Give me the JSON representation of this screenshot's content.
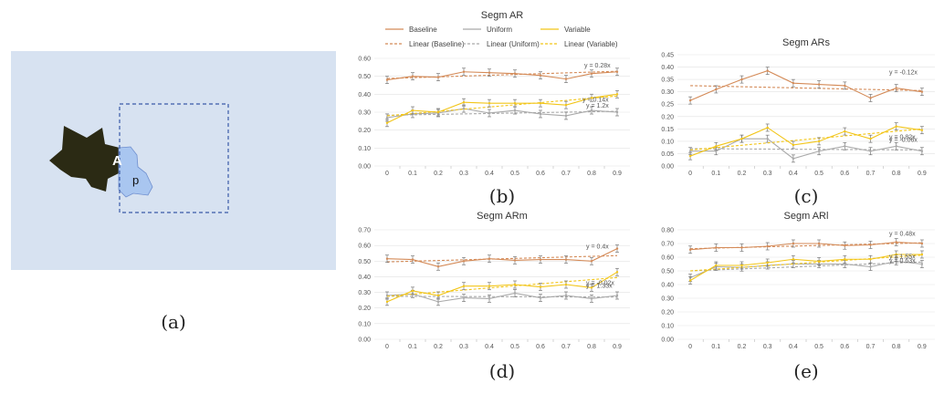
{
  "figure_a": {
    "label_a": "A",
    "label_p": "p",
    "caption": "(a)",
    "colors": {
      "background": "#d7e2f1",
      "shape": "#2b2a14",
      "p_shape": "#a9c6f0",
      "dashed_box": "#3a5aa8"
    }
  },
  "legend": {
    "baseline": "Baseline",
    "uniform": "Uniform",
    "variable": "Variable",
    "linear_baseline": "Linear (Baseline)",
    "linear_uniform": "Linear (Uniform)",
    "linear_variable": "Linear (Variable)"
  },
  "colors": {
    "baseline": "#d48a57",
    "uniform": "#a9a9a9",
    "variable": "#f2c518",
    "grid": "#e2e2e2"
  },
  "chart_data": [
    {
      "panel": "b",
      "caption": "(b)",
      "type": "line",
      "title": "Segm AR",
      "x": [
        0,
        0.1,
        0.2,
        0.3,
        0.4,
        0.5,
        0.6,
        0.7,
        0.8,
        0.9
      ],
      "x_tick_labels": [
        "0",
        "0.1",
        "0.2",
        "0.3",
        "0.4",
        "0.5",
        "0.6",
        "0.7",
        "0.8",
        "0.9"
      ],
      "ylim": [
        0,
        0.6
      ],
      "y_ticks": [
        "0.00",
        "0.10",
        "0.20",
        "0.30",
        "0.40",
        "0.50",
        "0.60"
      ],
      "series": [
        {
          "key": "baseline",
          "values": [
            0.48,
            0.5,
            0.495,
            0.525,
            0.52,
            0.515,
            0.505,
            0.485,
            0.515,
            0.525
          ],
          "trend": [
            0.488,
            0.528
          ]
        },
        {
          "key": "uniform",
          "values": [
            0.27,
            0.29,
            0.295,
            0.32,
            0.295,
            0.31,
            0.29,
            0.28,
            0.31,
            0.3
          ],
          "trend": [
            0.283,
            0.305
          ]
        },
        {
          "key": "variable",
          "values": [
            0.24,
            0.31,
            0.3,
            0.355,
            0.35,
            0.35,
            0.35,
            0.34,
            0.38,
            0.4
          ],
          "trend": [
            0.28,
            0.39
          ]
        }
      ],
      "annotations": [
        "y = 0.28x",
        "y = 1.2x",
        "y = 0.14x"
      ]
    },
    {
      "panel": "c",
      "caption": "(c)",
      "type": "line",
      "title": "Segm ARs",
      "x": [
        0,
        0.1,
        0.2,
        0.3,
        0.4,
        0.5,
        0.6,
        0.7,
        0.8,
        0.9
      ],
      "x_tick_labels": [
        "0",
        "0.1",
        "0.2",
        "0.3",
        "0.4",
        "0.5",
        "0.6",
        "0.7",
        "0.8",
        "0.9"
      ],
      "ylim": [
        0,
        0.45
      ],
      "y_ticks": [
        "0.00",
        "0.05",
        "0.10",
        "0.15",
        "0.20",
        "0.25",
        "0.30",
        "0.35",
        "0.40",
        "0.45"
      ],
      "series": [
        {
          "key": "baseline",
          "values": [
            0.265,
            0.31,
            0.35,
            0.385,
            0.335,
            0.33,
            0.325,
            0.275,
            0.315,
            0.3
          ],
          "trend": [
            0.325,
            0.305
          ]
        },
        {
          "key": "uniform",
          "values": [
            0.06,
            0.06,
            0.11,
            0.11,
            0.03,
            0.06,
            0.08,
            0.06,
            0.08,
            0.06
          ],
          "trend": [
            0.07,
            0.065
          ]
        },
        {
          "key": "variable",
          "values": [
            0.04,
            0.08,
            0.11,
            0.155,
            0.085,
            0.1,
            0.14,
            0.11,
            0.16,
            0.145
          ],
          "trend": [
            0.065,
            0.15
          ]
        }
      ],
      "annotations": [
        "y = -0.12x",
        "y = 0.82x",
        "y = -0.06x"
      ]
    },
    {
      "panel": "d",
      "caption": "(d)",
      "type": "line",
      "title": "Segm ARm",
      "x": [
        0,
        0.1,
        0.2,
        0.3,
        0.4,
        0.5,
        0.6,
        0.7,
        0.8,
        0.9
      ],
      "x_tick_labels": [
        "0",
        "0.1",
        "0.2",
        "0.3",
        "0.4",
        "0.5",
        "0.6",
        "0.7",
        "0.8",
        "0.9"
      ],
      "ylim": [
        0,
        0.7
      ],
      "y_ticks": [
        "0.00",
        "0.10",
        "0.20",
        "0.30",
        "0.40",
        "0.50",
        "0.60",
        "0.70"
      ],
      "series": [
        {
          "key": "baseline",
          "values": [
            0.515,
            0.51,
            0.465,
            0.5,
            0.515,
            0.505,
            0.51,
            0.51,
            0.5,
            0.58
          ],
          "trend": [
            0.495,
            0.535
          ]
        },
        {
          "key": "uniform",
          "values": [
            0.28,
            0.29,
            0.24,
            0.265,
            0.26,
            0.295,
            0.265,
            0.28,
            0.26,
            0.28
          ],
          "trend": [
            0.275,
            0.27
          ]
        },
        {
          "key": "variable",
          "values": [
            0.24,
            0.31,
            0.28,
            0.34,
            0.34,
            0.35,
            0.335,
            0.35,
            0.33,
            0.43
          ],
          "trend": [
            0.275,
            0.395
          ]
        }
      ],
      "annotations": [
        "y = 0.4x",
        "y = 1.33x",
        "y = -0.02x"
      ]
    },
    {
      "panel": "e",
      "caption": "(e)",
      "type": "line",
      "title": "Segm ARl",
      "x": [
        0,
        0.1,
        0.2,
        0.3,
        0.4,
        0.5,
        0.6,
        0.7,
        0.8,
        0.9
      ],
      "x_tick_labels": [
        "0",
        "0.1",
        "0.2",
        "0.3",
        "0.4",
        "0.5",
        "0.6",
        "0.7",
        "0.8",
        "0.9"
      ],
      "ylim": [
        0,
        0.8
      ],
      "y_ticks": [
        "0.00",
        "0.10",
        "0.20",
        "0.30",
        "0.40",
        "0.50",
        "0.60",
        "0.70",
        "0.80"
      ],
      "series": [
        {
          "key": "baseline",
          "values": [
            0.655,
            0.67,
            0.67,
            0.68,
            0.7,
            0.7,
            0.685,
            0.69,
            0.71,
            0.7
          ],
          "trend": [
            0.662,
            0.705
          ]
        },
        {
          "key": "uniform",
          "values": [
            0.45,
            0.53,
            0.525,
            0.54,
            0.55,
            0.55,
            0.55,
            0.53,
            0.57,
            0.55
          ],
          "trend": [
            0.5,
            0.565
          ]
        },
        {
          "key": "variable",
          "values": [
            0.43,
            0.54,
            0.54,
            0.56,
            0.585,
            0.57,
            0.585,
            0.585,
            0.62,
            0.62
          ],
          "trend": [
            0.5,
            0.615
          ]
        }
      ],
      "annotations": [
        "y = 0.48x",
        "y = 1.55x",
        "y = 0.63x"
      ]
    }
  ]
}
